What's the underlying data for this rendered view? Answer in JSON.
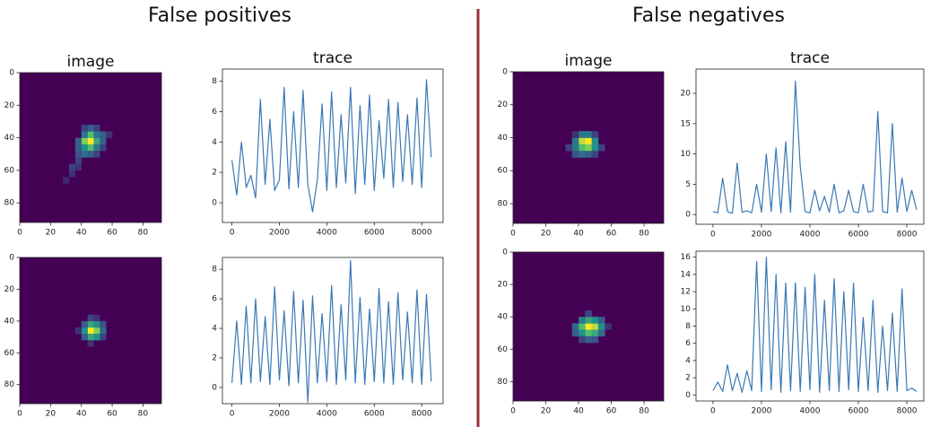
{
  "headings": [
    "False positives",
    "False negatives"
  ],
  "chart_data": [
    {
      "type": "image",
      "title": "image",
      "xlim": [
        0,
        92
      ],
      "ylim": [
        92,
        0
      ],
      "xticks": [
        0,
        20,
        40,
        60,
        80
      ],
      "yticks": [
        0,
        20,
        40,
        60,
        80
      ],
      "cell": 4,
      "colormap": [
        "#440154",
        "#3b528b",
        "#21918c",
        "#5ec962",
        "#fde725"
      ],
      "cells": [
        [
          44,
          40,
          1
        ],
        [
          40,
          40,
          0.8
        ],
        [
          44,
          36,
          0.7
        ],
        [
          48,
          40,
          0.6
        ],
        [
          44,
          44,
          0.7
        ],
        [
          40,
          44,
          0.5
        ],
        [
          48,
          36,
          0.4
        ],
        [
          52,
          36,
          0.3
        ],
        [
          40,
          36,
          0.4
        ],
        [
          48,
          44,
          0.4
        ],
        [
          36,
          40,
          0.3
        ],
        [
          44,
          32,
          0.3
        ],
        [
          40,
          48,
          0.35
        ],
        [
          44,
          48,
          0.3
        ],
        [
          36,
          48,
          0.25
        ],
        [
          52,
          40,
          0.3
        ],
        [
          36,
          52,
          0.2
        ],
        [
          32,
          56,
          0.2
        ],
        [
          36,
          56,
          0.15
        ],
        [
          32,
          60,
          0.15
        ],
        [
          28,
          64,
          0.12
        ],
        [
          48,
          32,
          0.2
        ],
        [
          52,
          44,
          0.2
        ],
        [
          56,
          36,
          0.15
        ],
        [
          40,
          32,
          0.2
        ],
        [
          36,
          44,
          0.3
        ],
        [
          48,
          48,
          0.2
        ]
      ]
    },
    {
      "type": "line",
      "title": "trace",
      "color": "#3a78b5",
      "xlim": [
        -400,
        8900
      ],
      "ylim": [
        -1.3,
        8.8
      ],
      "xticks": [
        0,
        2000,
        4000,
        6000,
        8000
      ],
      "yticks": [
        0,
        2,
        4,
        6,
        8
      ],
      "x": [
        0,
        200,
        400,
        600,
        800,
        1000,
        1200,
        1400,
        1600,
        1800,
        2000,
        2200,
        2400,
        2600,
        2800,
        3000,
        3200,
        3400,
        3600,
        3800,
        4000,
        4200,
        4400,
        4600,
        4800,
        5000,
        5200,
        5400,
        5600,
        5800,
        6000,
        6200,
        6400,
        6600,
        6800,
        7000,
        7200,
        7400,
        7600,
        7800,
        8000,
        8200,
        8400
      ],
      "values": [
        2.8,
        0.5,
        4.0,
        1.0,
        1.8,
        0.3,
        6.8,
        1.2,
        5.5,
        0.8,
        1.5,
        7.6,
        0.9,
        6.0,
        1.0,
        7.4,
        1.2,
        -0.6,
        1.5,
        6.5,
        0.8,
        7.3,
        1.0,
        5.8,
        1.3,
        7.6,
        0.6,
        6.4,
        1.2,
        7.1,
        0.8,
        5.4,
        1.6,
        6.8,
        1.0,
        6.6,
        1.4,
        5.8,
        1.2,
        6.9,
        1.0,
        8.1,
        3.0
      ]
    },
    {
      "type": "image",
      "xlim": [
        0,
        92
      ],
      "ylim": [
        92,
        0
      ],
      "xticks": [
        0,
        20,
        40,
        60,
        80
      ],
      "yticks": [
        0,
        20,
        40,
        60,
        80
      ],
      "cell": 4,
      "colormap": [
        "#440154",
        "#3b528b",
        "#21918c",
        "#5ec962",
        "#fde725"
      ],
      "cells": [
        [
          44,
          44,
          1
        ],
        [
          48,
          44,
          0.8
        ],
        [
          44,
          40,
          0.6
        ],
        [
          48,
          40,
          0.5
        ],
        [
          40,
          44,
          0.5
        ],
        [
          44,
          48,
          0.6
        ],
        [
          48,
          48,
          0.5
        ],
        [
          40,
          40,
          0.3
        ],
        [
          52,
          44,
          0.35
        ],
        [
          40,
          48,
          0.3
        ],
        [
          52,
          40,
          0.25
        ],
        [
          44,
          36,
          0.2
        ],
        [
          48,
          36,
          0.15
        ],
        [
          52,
          48,
          0.2
        ],
        [
          44,
          52,
          0.15
        ],
        [
          36,
          44,
          0.15
        ]
      ]
    },
    {
      "type": "line",
      "color": "#3a78b5",
      "xlim": [
        -400,
        8900
      ],
      "ylim": [
        -1.1,
        8.8
      ],
      "xticks": [
        0,
        2000,
        4000,
        6000,
        8000
      ],
      "yticks": [
        0,
        2,
        4,
        6,
        8
      ],
      "x": [
        0,
        200,
        400,
        600,
        800,
        1000,
        1200,
        1400,
        1600,
        1800,
        2000,
        2200,
        2400,
        2600,
        2800,
        3000,
        3200,
        3400,
        3600,
        3800,
        4000,
        4200,
        4400,
        4600,
        4800,
        5000,
        5200,
        5400,
        5600,
        5800,
        6000,
        6200,
        6400,
        6600,
        6800,
        7000,
        7200,
        7400,
        7600,
        7800,
        8000,
        8200,
        8400
      ],
      "values": [
        0.3,
        4.5,
        0.2,
        5.5,
        0.3,
        6.0,
        0.4,
        4.8,
        0.2,
        6.8,
        0.5,
        5.2,
        0.1,
        6.5,
        0.3,
        5.9,
        -1.0,
        6.2,
        0.3,
        5.0,
        0.4,
        6.9,
        0.2,
        5.6,
        0.5,
        8.6,
        0.3,
        6.1,
        0.2,
        5.3,
        0.4,
        6.7,
        0.3,
        5.8,
        0.2,
        6.4,
        0.5,
        5.1,
        0.3,
        6.6,
        0.2,
        6.3,
        0.4
      ]
    },
    {
      "type": "image",
      "title": "image",
      "xlim": [
        0,
        92
      ],
      "ylim": [
        92,
        0
      ],
      "xticks": [
        0,
        20,
        40,
        60,
        80
      ],
      "yticks": [
        0,
        20,
        40,
        60,
        80
      ],
      "cell": 4,
      "colormap": [
        "#440154",
        "#3b528b",
        "#21918c",
        "#5ec962",
        "#fde725"
      ],
      "cells": [
        [
          40,
          40,
          0.9
        ],
        [
          44,
          40,
          1
        ],
        [
          40,
          44,
          0.7
        ],
        [
          44,
          44,
          0.8
        ],
        [
          36,
          40,
          0.4
        ],
        [
          48,
          40,
          0.5
        ],
        [
          36,
          44,
          0.4
        ],
        [
          48,
          44,
          0.5
        ],
        [
          40,
          36,
          0.4
        ],
        [
          44,
          36,
          0.4
        ],
        [
          40,
          48,
          0.35
        ],
        [
          44,
          48,
          0.3
        ],
        [
          52,
          44,
          0.2
        ],
        [
          32,
          44,
          0.2
        ],
        [
          36,
          48,
          0.25
        ],
        [
          48,
          48,
          0.2
        ],
        [
          48,
          36,
          0.2
        ],
        [
          36,
          36,
          0.15
        ]
      ]
    },
    {
      "type": "line",
      "title": "trace",
      "color": "#3a78b5",
      "xlim": [
        -700,
        8700
      ],
      "ylim": [
        -1.6,
        24
      ],
      "xticks": [
        0,
        2000,
        4000,
        6000,
        8000
      ],
      "yticks": [
        0,
        5,
        10,
        15,
        20
      ],
      "x": [
        0,
        200,
        400,
        600,
        800,
        1000,
        1200,
        1400,
        1600,
        1800,
        2000,
        2200,
        2400,
        2600,
        2800,
        3000,
        3200,
        3400,
        3600,
        3800,
        4000,
        4200,
        4400,
        4600,
        4800,
        5000,
        5200,
        5400,
        5600,
        5800,
        6000,
        6200,
        6400,
        6600,
        6800,
        7000,
        7200,
        7400,
        7600,
        7800,
        8000,
        8200,
        8400
      ],
      "values": [
        0.5,
        0.3,
        6,
        0.5,
        0.2,
        8.5,
        0.4,
        0.6,
        0.3,
        5,
        0.4,
        10,
        0.5,
        11,
        0.3,
        12,
        0.4,
        22,
        8,
        0.5,
        0.3,
        4,
        0.6,
        3,
        0.4,
        5,
        0.3,
        0.6,
        4,
        0.5,
        0.3,
        5,
        0.4,
        0.6,
        17,
        0.5,
        0.3,
        15,
        0.4,
        6,
        0.5,
        4,
        0.8
      ]
    },
    {
      "type": "image",
      "xlim": [
        0,
        92
      ],
      "ylim": [
        92,
        0
      ],
      "xticks": [
        0,
        20,
        40,
        60,
        80
      ],
      "yticks": [
        0,
        20,
        40,
        60,
        80
      ],
      "cell": 4,
      "colormap": [
        "#440154",
        "#3b528b",
        "#21918c",
        "#5ec962",
        "#fde725"
      ],
      "cells": [
        [
          44,
          44,
          1
        ],
        [
          48,
          44,
          0.9
        ],
        [
          40,
          44,
          0.7
        ],
        [
          44,
          48,
          0.7
        ],
        [
          48,
          48,
          0.6
        ],
        [
          44,
          40,
          0.6
        ],
        [
          48,
          40,
          0.5
        ],
        [
          40,
          48,
          0.5
        ],
        [
          52,
          44,
          0.5
        ],
        [
          40,
          40,
          0.4
        ],
        [
          36,
          44,
          0.35
        ],
        [
          52,
          48,
          0.35
        ],
        [
          52,
          40,
          0.3
        ],
        [
          36,
          48,
          0.3
        ],
        [
          44,
          52,
          0.3
        ],
        [
          48,
          52,
          0.25
        ],
        [
          40,
          52,
          0.2
        ],
        [
          56,
          44,
          0.15
        ],
        [
          44,
          36,
          0.2
        ]
      ]
    },
    {
      "type": "line",
      "color": "#3a78b5",
      "xlim": [
        -700,
        8700
      ],
      "ylim": [
        -0.7,
        16.7
      ],
      "xticks": [
        0,
        2000,
        4000,
        6000,
        8000
      ],
      "yticks": [
        0,
        2,
        4,
        6,
        8,
        10,
        12,
        14,
        16
      ],
      "x": [
        0,
        200,
        400,
        600,
        800,
        1000,
        1200,
        1400,
        1600,
        1800,
        2000,
        2200,
        2400,
        2600,
        2800,
        3000,
        3200,
        3400,
        3600,
        3800,
        4000,
        4200,
        4400,
        4600,
        4800,
        5000,
        5200,
        5400,
        5600,
        5800,
        6000,
        6200,
        6400,
        6600,
        6800,
        7000,
        7200,
        7400,
        7600,
        7800,
        8000,
        8200,
        8400
      ],
      "values": [
        0.5,
        1.5,
        0.4,
        3.5,
        0.5,
        2.5,
        0.3,
        2.8,
        0.5,
        15.5,
        0.4,
        16,
        0.6,
        14,
        0.3,
        13,
        0.5,
        13,
        0.4,
        12.5,
        0.6,
        14,
        0.3,
        11,
        0.5,
        13.5,
        0.4,
        12,
        0.6,
        13,
        0.4,
        9,
        0.5,
        11,
        0.3,
        8,
        0.5,
        9.5,
        0.4,
        12.3,
        0.5,
        0.8,
        0.4
      ]
    }
  ]
}
